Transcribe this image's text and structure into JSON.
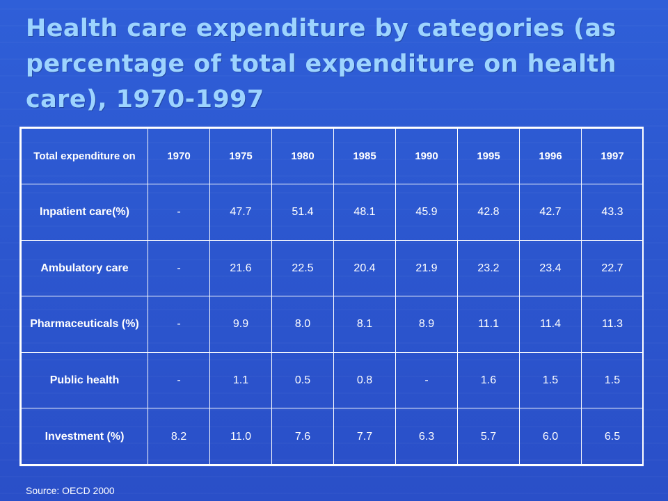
{
  "title": "Health care expenditure by categories (as\npercentage of total expenditure on health\ncare), 1970-1997",
  "table": {
    "header": [
      "Total expenditure on",
      "1970",
      "1975",
      "1980",
      "1985",
      "1990",
      "1995",
      "1996",
      "1997"
    ],
    "rows": [
      [
        "Inpatient care(%)",
        "-",
        "47.7",
        "51.4",
        "48.1",
        "45.9",
        "42.8",
        "42.7",
        "43.3"
      ],
      [
        "Ambulatory care",
        "-",
        "21.6",
        "22.5",
        "20.4",
        "21.9",
        "23.2",
        "23.4",
        "22.7"
      ],
      [
        "Pharmaceuticals (%)",
        "-",
        "9.9",
        "8.0",
        "8.1",
        "8.9",
        "11.1",
        "11.4",
        "11.3"
      ],
      [
        "Public health",
        "-",
        "1.1",
        "0.5",
        "0.8",
        "-",
        "1.6",
        "1.5",
        "1.5"
      ],
      [
        "Investment (%)",
        "8.2",
        "11.0",
        "7.6",
        "7.7",
        "6.3",
        "5.7",
        "6.0",
        "6.5"
      ]
    ]
  },
  "source": "Source: OECD 2000",
  "colors": {
    "background": "#2c57cf",
    "title": "#9dd4ff",
    "table_text": "#ffffff",
    "table_border": "#ffffff"
  }
}
